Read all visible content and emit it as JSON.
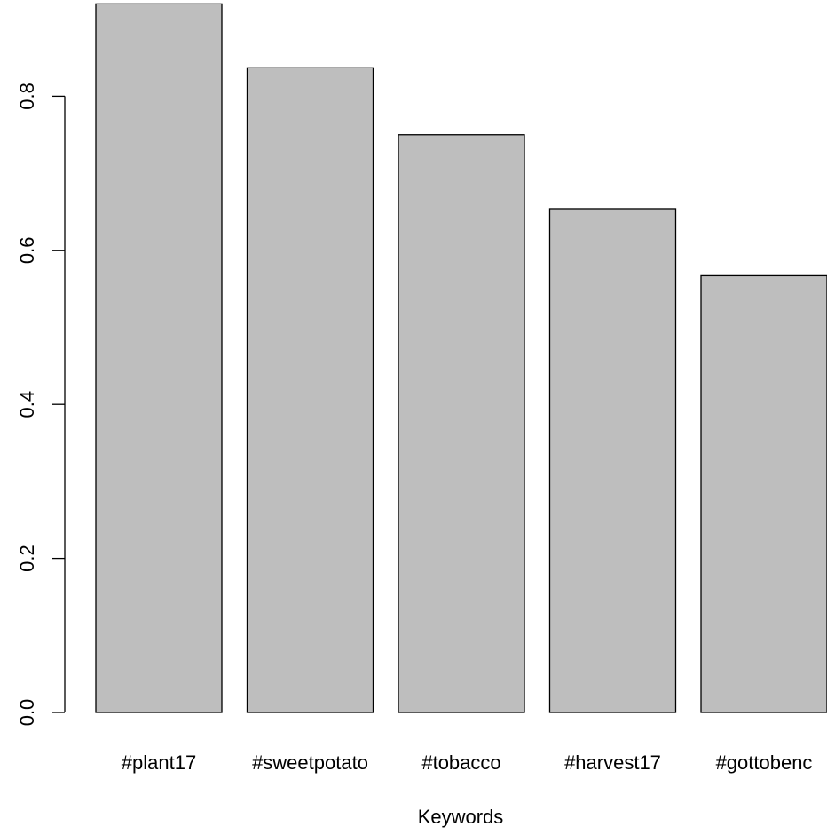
{
  "chart_data": {
    "type": "bar",
    "title": "",
    "xlabel": "Keywords",
    "ylabel": "",
    "categories": [
      "#plant17",
      "#sweetpotato",
      "#tobacco",
      "#harvest17",
      "#gottobenc"
    ],
    "values": [
      0.92,
      0.837,
      0.75,
      0.654,
      0.567
    ],
    "ylim": [
      0,
      0.92
    ],
    "yticks": [
      0.0,
      0.2,
      0.4,
      0.6,
      0.8
    ],
    "ytick_labels": [
      "0.0",
      "0.2",
      "0.4",
      "0.6",
      "0.8"
    ],
    "grid": false,
    "legend": "none",
    "bar_color": "#bebebe",
    "bar_edge_color": "#000000"
  }
}
